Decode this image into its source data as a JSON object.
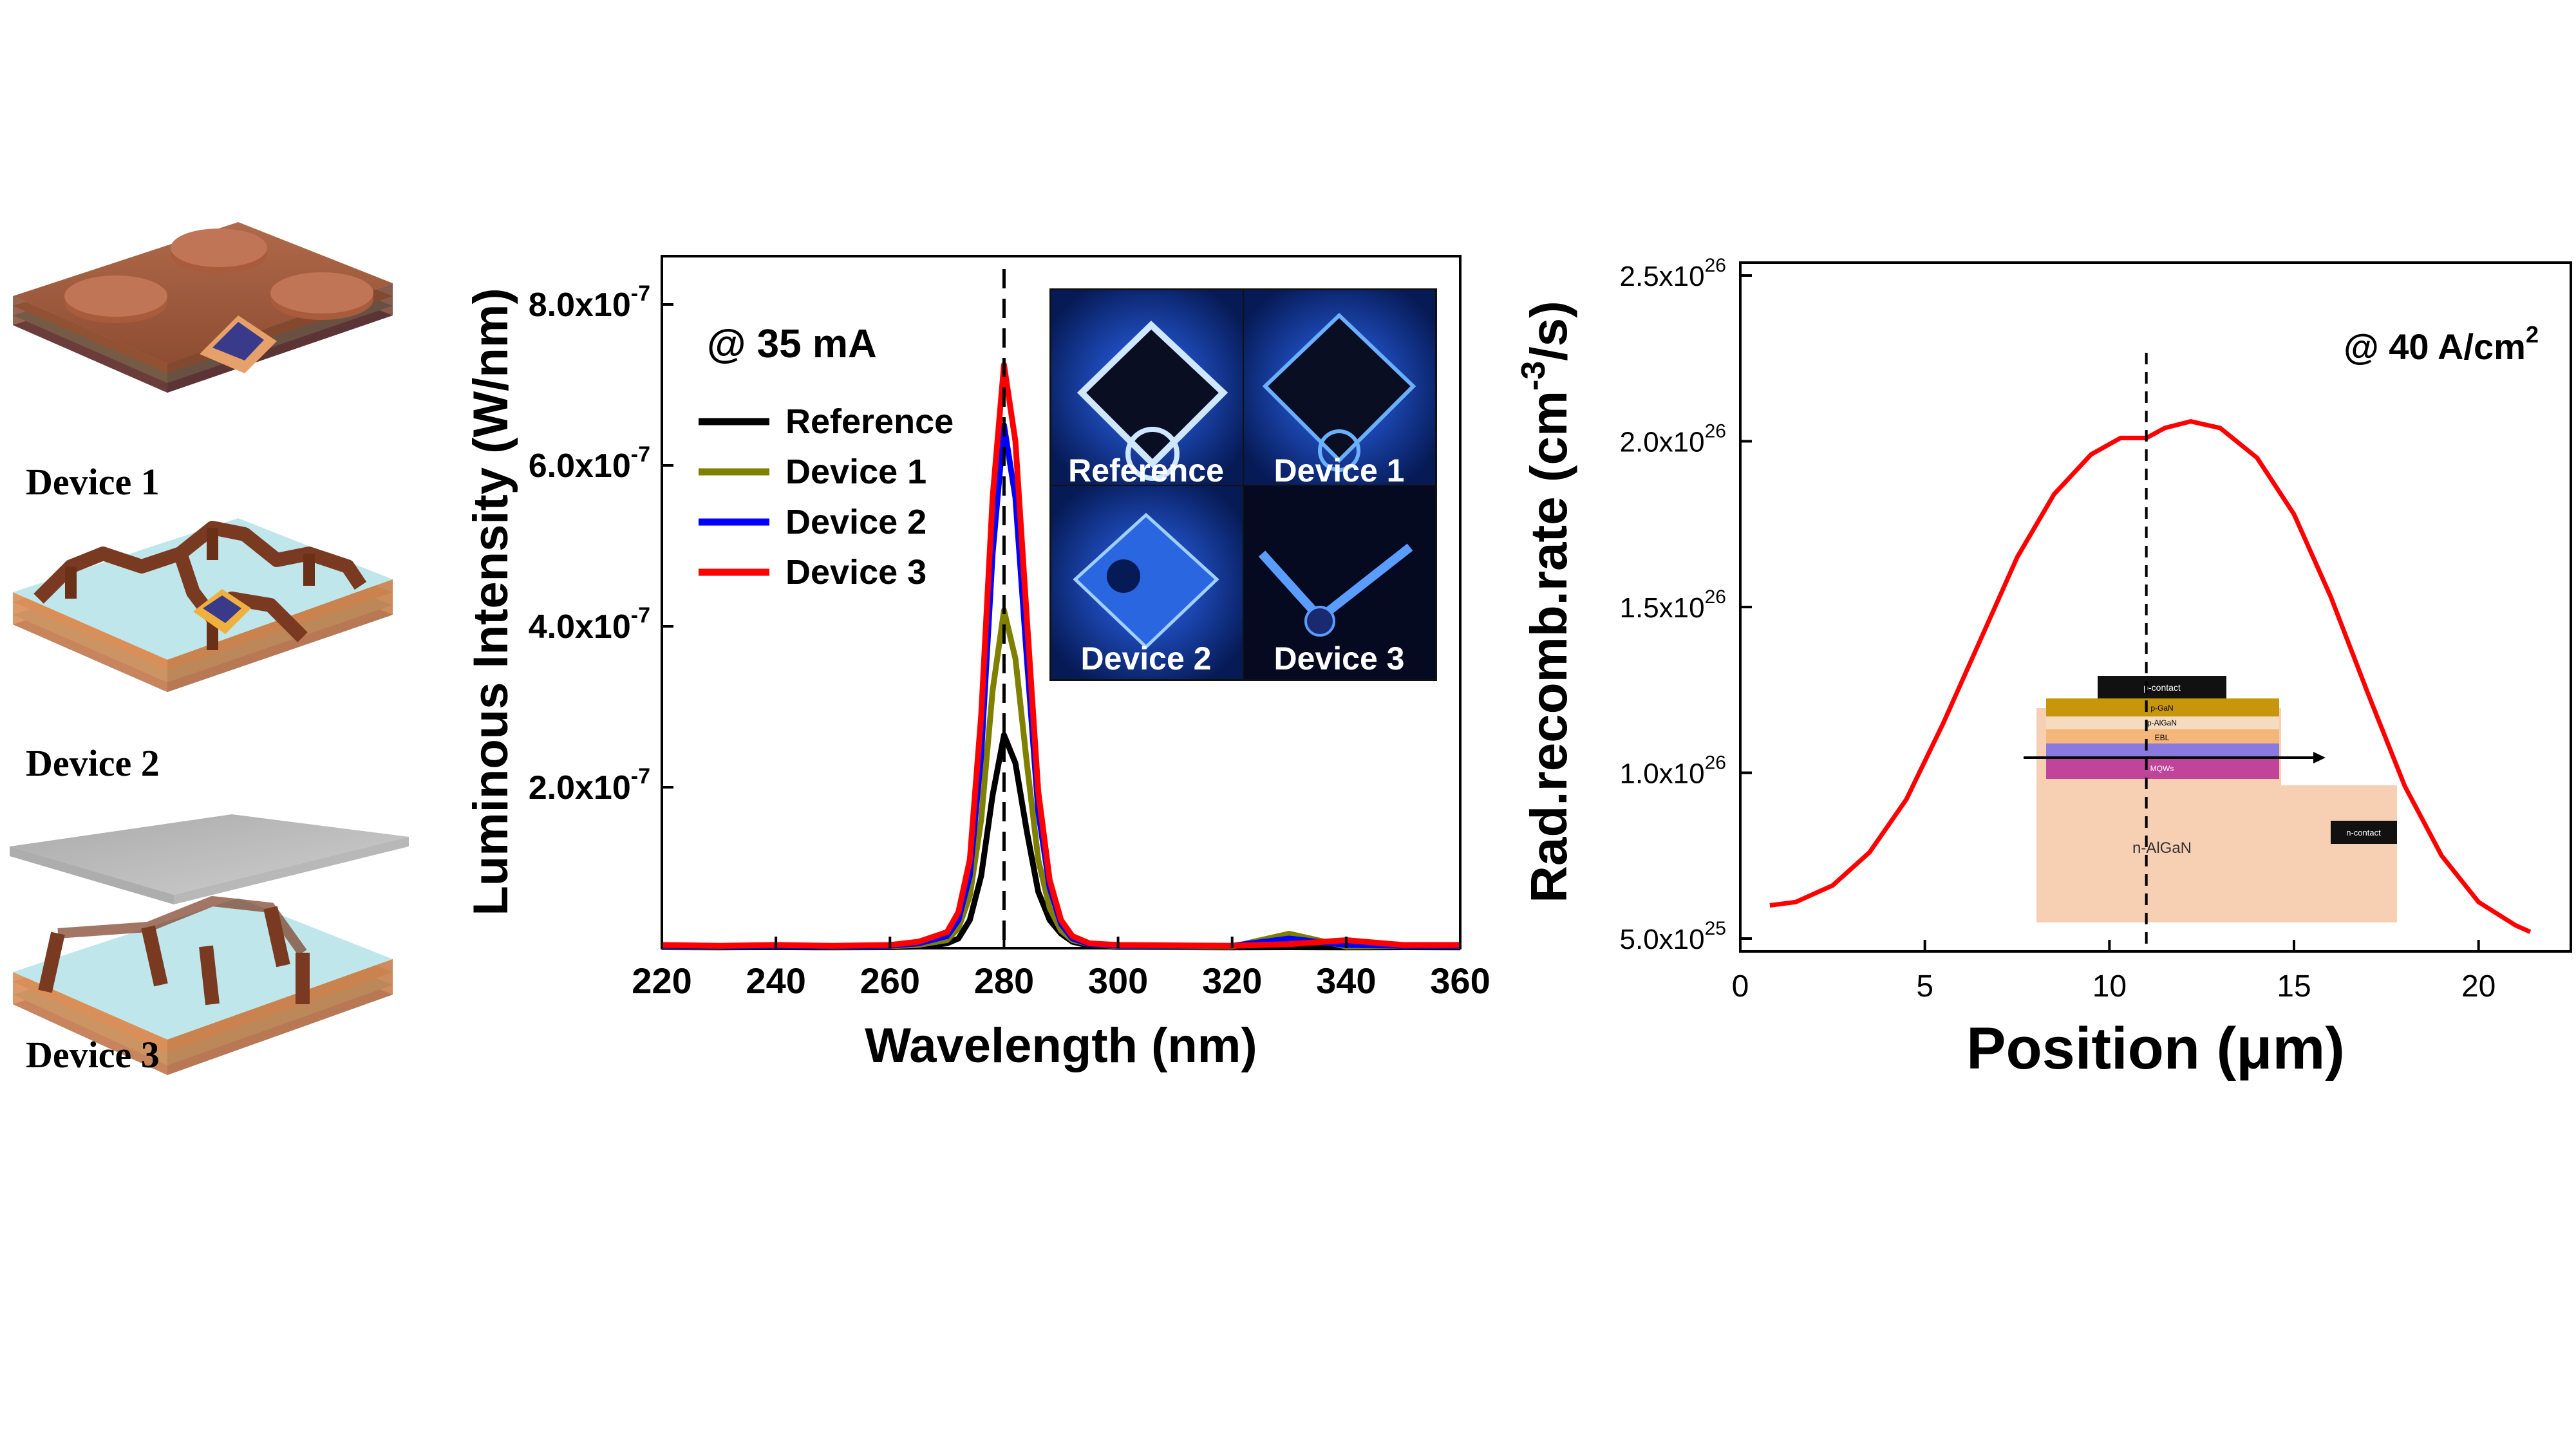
{
  "devices": {
    "labels": [
      "Device 1",
      "Device 2",
      "Device 3"
    ]
  },
  "chart_data": [
    {
      "type": "line",
      "title": "",
      "annotation": "@ 35 mA",
      "xlabel": "Wavelength (nm)",
      "ylabel": "Luminous Intensity (W/nm)",
      "xlim": [
        220,
        360
      ],
      "ylim": [
        0,
        8.6e-07
      ],
      "xticks": [
        220,
        240,
        260,
        280,
        300,
        320,
        340,
        360
      ],
      "xtick_labels": [
        "220",
        "240",
        "260",
        "280",
        "300",
        "320",
        "340",
        "360"
      ],
      "yticks": [
        2e-07,
        4e-07,
        6e-07,
        8e-07
      ],
      "ytick_labels": [
        "2.0x10",
        "4.0x10",
        "6.0x10",
        "8.0x10"
      ],
      "ytick_exponent": "-7",
      "vline_x": 280,
      "legend_position": "center-left",
      "x": [
        220,
        230,
        240,
        250,
        260,
        265,
        270,
        272,
        274,
        276,
        278,
        280,
        282,
        284,
        286,
        288,
        290,
        292,
        295,
        300,
        310,
        320,
        330,
        340,
        350,
        360
      ],
      "series": [
        {
          "name": "Reference",
          "color": "#000000",
          "values": [
            1.2e-09,
            1e-09,
            1.3e-09,
            1e-09,
            1.2e-09,
            2e-09,
            6e-09,
            1.2e-08,
            3.5e-08,
            9e-08,
            1.9e-07,
            2.65e-07,
            2.3e-07,
            1.45e-07,
            7e-08,
            3.5e-08,
            1.8e-08,
            8e-09,
            3e-09,
            1.5e-09,
            1.2e-09,
            1e-09,
            1.2e-09,
            1e-09,
            1.2e-09,
            1e-09
          ]
        },
        {
          "name": "Device 1",
          "color": "#808000",
          "values": [
            2e-09,
            2e-09,
            4e-09,
            2e-09,
            2.5e-09,
            4e-09,
            1e-08,
            2.5e-08,
            6.5e-08,
            1.6e-07,
            3.2e-07,
            4.2e-07,
            3.6e-07,
            2.3e-07,
            1.1e-07,
            5e-08,
            2.2e-08,
            1e-08,
            5e-09,
            2.5e-09,
            2e-09,
            2e-09,
            1.8e-08,
            2e-09,
            3e-09,
            3e-09
          ]
        },
        {
          "name": "Device 2",
          "color": "#0000ff",
          "values": [
            3e-09,
            2.5e-09,
            3e-09,
            2.5e-09,
            3e-09,
            6e-09,
            1.5e-08,
            3.5e-08,
            9e-08,
            2.4e-07,
            4.9e-07,
            6.5e-07,
            5.6e-07,
            3.6e-07,
            1.7e-07,
            7.5e-08,
            3e-08,
            1.2e-08,
            5e-09,
            3e-09,
            3e-09,
            3e-09,
            1.2e-08,
            4e-09,
            3e-09,
            3e-09
          ]
        },
        {
          "name": "Device 3",
          "color": "#ff0000",
          "values": [
            4e-09,
            3e-09,
            4e-09,
            3e-09,
            4e-09,
            8e-09,
            2e-08,
            4.5e-08,
            1.1e-07,
            2.9e-07,
            5.6e-07,
            7.25e-07,
            6.3e-07,
            4.1e-07,
            1.95e-07,
            8.5e-08,
            3.5e-08,
            1.5e-08,
            6e-09,
            4e-09,
            3.5e-09,
            3e-09,
            5e-09,
            1e-08,
            4e-09,
            4e-09
          ]
        }
      ],
      "inset_labels": [
        "Reference",
        "Device 1",
        "Device 2",
        "Device 3"
      ]
    },
    {
      "type": "line",
      "title": "",
      "annotation": "@ 40 A/cm",
      "annotation_sup": "2",
      "xlabel": "Position (μm)",
      "ylabel_main": "Rad.recomb.rate (cm",
      "ylabel_sup": "-3",
      "ylabel_end": "/s)",
      "xlim": [
        0,
        22.5
      ],
      "ylim": [
        5e+25,
        2.5e+26
      ],
      "xticks": [
        0,
        5,
        10,
        15,
        20
      ],
      "xtick_labels": [
        "0",
        "5",
        "10",
        "15",
        "20"
      ],
      "yticks": [
        5e+25,
        1e+26,
        1.5e+26,
        2e+26,
        2.5e+26
      ],
      "ytick_labels": [
        "5.0x10",
        "1.0x10",
        "1.5x10",
        "2.0x10",
        "2.5x10"
      ],
      "ytick_exponents": [
        "25",
        "26",
        "26",
        "26",
        "26"
      ],
      "vline_x": 11,
      "x": [
        0.8,
        1.5,
        2.5,
        3.5,
        4.5,
        5.5,
        6.5,
        7.5,
        8.5,
        9.5,
        10.3,
        11.0,
        11.5,
        12.2,
        13,
        14,
        15,
        16,
        17,
        18,
        19,
        20,
        21,
        21.4
      ],
      "series": [
        {
          "name": "Rad.recomb.rate",
          "color": "#ff0000",
          "values": [
            6e+25,
            6.1e+25,
            6.6e+25,
            7.6e+25,
            9.2e+25,
            1.15e+26,
            1.4e+26,
            1.65e+26,
            1.84e+26,
            1.96e+26,
            2.01e+26,
            2.01e+26,
            2.04e+26,
            2.06e+26,
            2.04e+26,
            1.95e+26,
            1.78e+26,
            1.53e+26,
            1.24e+26,
            9.6e+25,
            7.5e+25,
            6.1e+25,
            5.4e+25,
            5.2e+25
          ]
        }
      ],
      "inset_labels": [
        "p-contact",
        "p-GaN",
        "p-AlGaN",
        "EBL",
        "MQWs",
        "n-AlGaN",
        "n-contact"
      ]
    }
  ]
}
